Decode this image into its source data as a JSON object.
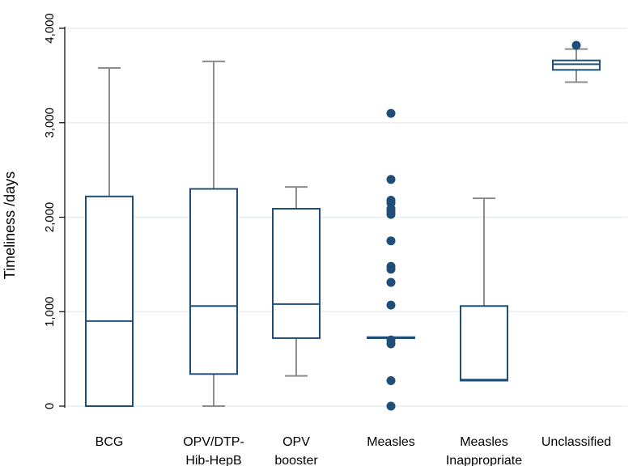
{
  "chart_data": {
    "type": "boxplot",
    "title": "",
    "xlabel": "",
    "ylabel": "Timeliness /days",
    "ylim": [
      0,
      4000
    ],
    "yticks": [
      0,
      1000,
      2000,
      3000,
      4000
    ],
    "ytick_labels": [
      "0",
      "1,000",
      "2,000",
      "3,000",
      "4,000"
    ],
    "grid": true,
    "colors": {
      "box": "#1f4e79",
      "whisker": "#8c8c8c",
      "outlier": "#1f4e79",
      "grid": "#e6eef2",
      "axis": "#000000"
    },
    "categories": [
      {
        "label_lines": [
          "BCG"
        ],
        "whisker_low": 0,
        "q1": 0,
        "median": 900,
        "q3": 2220,
        "whisker_high": 3580,
        "outliers": []
      },
      {
        "label_lines": [
          "OPV/DTP-",
          "Hib-HepB"
        ],
        "whisker_low": 0,
        "q1": 340,
        "median": 1060,
        "q3": 2300,
        "whisker_high": 3650,
        "outliers": []
      },
      {
        "label_lines": [
          "OPV",
          "booster"
        ],
        "whisker_low": 320,
        "q1": 720,
        "median": 1080,
        "q3": 2090,
        "whisker_high": 2320,
        "outliers": []
      },
      {
        "label_lines": [
          "Measles"
        ],
        "whisker_low": 720,
        "q1": 720,
        "median": 720,
        "q3": 730,
        "whisker_high": 730,
        "outliers": [
          0,
          270,
          660,
          700,
          1070,
          1310,
          1450,
          1480,
          1750,
          2030,
          2060,
          2090,
          2150,
          2180,
          2400,
          3100
        ]
      },
      {
        "label_lines": [
          "Measles",
          "Inappropriate"
        ],
        "whisker_low": 270,
        "q1": 270,
        "median": 280,
        "q3": 1060,
        "whisker_high": 2200,
        "outliers": []
      },
      {
        "label_lines": [
          "Unclassified"
        ],
        "whisker_low": 3430,
        "q1": 3560,
        "median": 3620,
        "q3": 3660,
        "whisker_high": 3780,
        "outliers": [
          3820
        ]
      }
    ]
  }
}
